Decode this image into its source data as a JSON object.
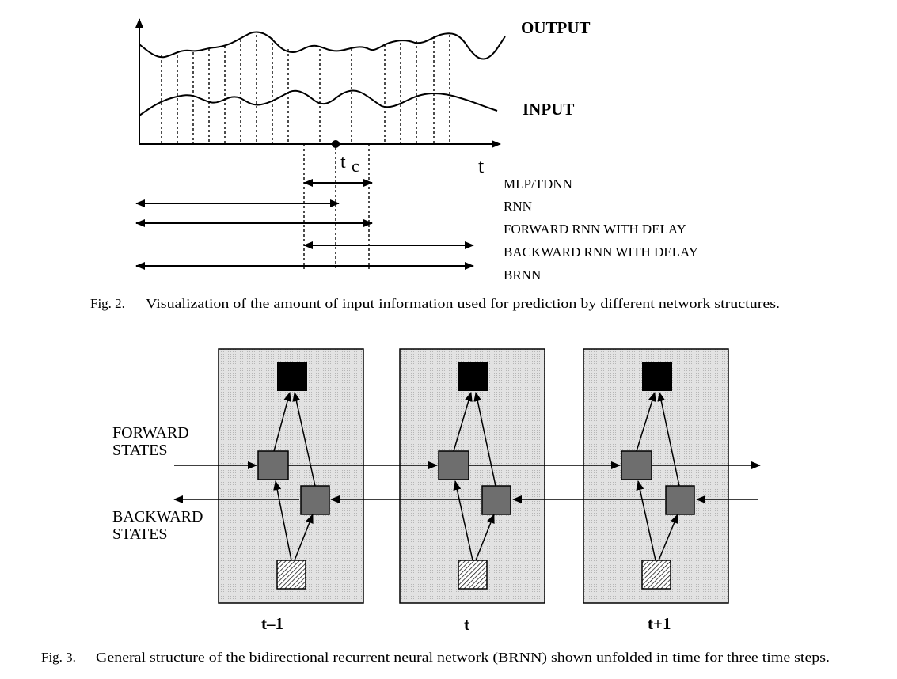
{
  "fig2": {
    "output_label": "OUTPUT",
    "input_label": "INPUT",
    "t_axis_label": "t",
    "tc_t": "t",
    "tc_c": "c",
    "structures": [
      "MLP/TDNN",
      "RNN",
      "FORWARD RNN WITH DELAY",
      "BACKWARD RNN WITH DELAY",
      "BRNN"
    ],
    "caption_num": "Fig. 2.",
    "caption_text": "Visualization of the amount of input information used for prediction by different network structures."
  },
  "fig3": {
    "forward_label_1": "FORWARD",
    "forward_label_2": "STATES",
    "backward_label_1": "BACKWARD",
    "backward_label_2": "STATES",
    "time_labels": [
      "t–1",
      "t",
      "t+1"
    ],
    "caption_num": "Fig. 3.",
    "caption_text": "General structure of the bidirectional recurrent neural network (BRNN) shown unfolded in time for three time steps.",
    "colors": {
      "panel": "#dcdcdc",
      "output_unit": "#000000",
      "state_unit": "#6e6e6e"
    }
  }
}
